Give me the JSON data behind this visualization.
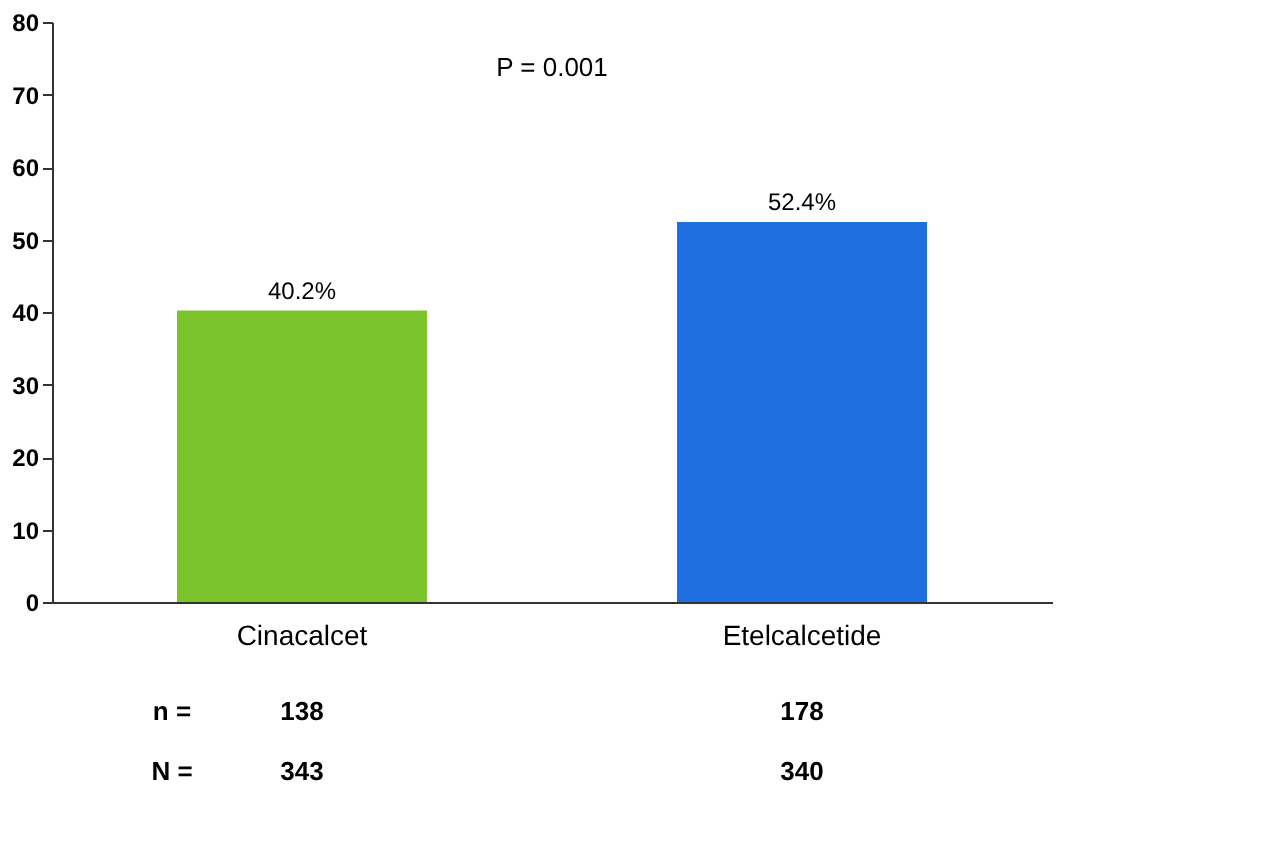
{
  "chart_data": {
    "type": "bar",
    "categories": [
      "Cinacalcet",
      "Etelcalcetide"
    ],
    "values": [
      40.2,
      52.4
    ],
    "colors": [
      "#7cc42c",
      "#1f6ee0"
    ],
    "value_labels": [
      "40.2%",
      "52.4%"
    ],
    "ylim": [
      0,
      80
    ],
    "yticks": [
      0,
      10,
      20,
      30,
      40,
      50,
      60,
      70,
      80
    ],
    "grid": false,
    "annotations": [
      "P = 0.001",
      "n =",
      "138",
      "178",
      "N =",
      "343",
      "340"
    ]
  }
}
